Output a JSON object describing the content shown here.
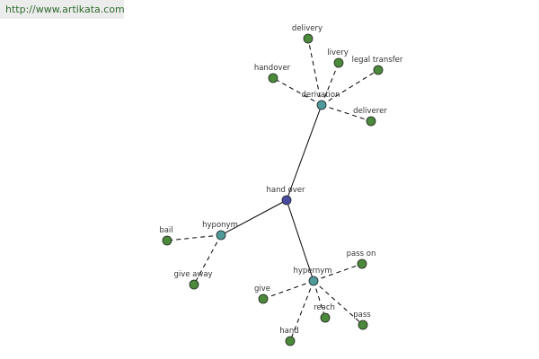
{
  "header": {
    "url": "http://www.artikata.com"
  },
  "nodes": [
    {
      "label": "hand over"
    },
    {
      "label": "derivation"
    },
    {
      "label": "hyponym"
    },
    {
      "label": "hypernym"
    },
    {
      "label": "delivery"
    },
    {
      "label": "livery"
    },
    {
      "label": "legal transfer"
    },
    {
      "label": "handover"
    },
    {
      "label": "deliverer"
    },
    {
      "label": "bail"
    },
    {
      "label": "give away"
    },
    {
      "label": "pass on"
    },
    {
      "label": "give"
    },
    {
      "label": "reach"
    },
    {
      "label": "pass"
    },
    {
      "label": "hand"
    }
  ]
}
